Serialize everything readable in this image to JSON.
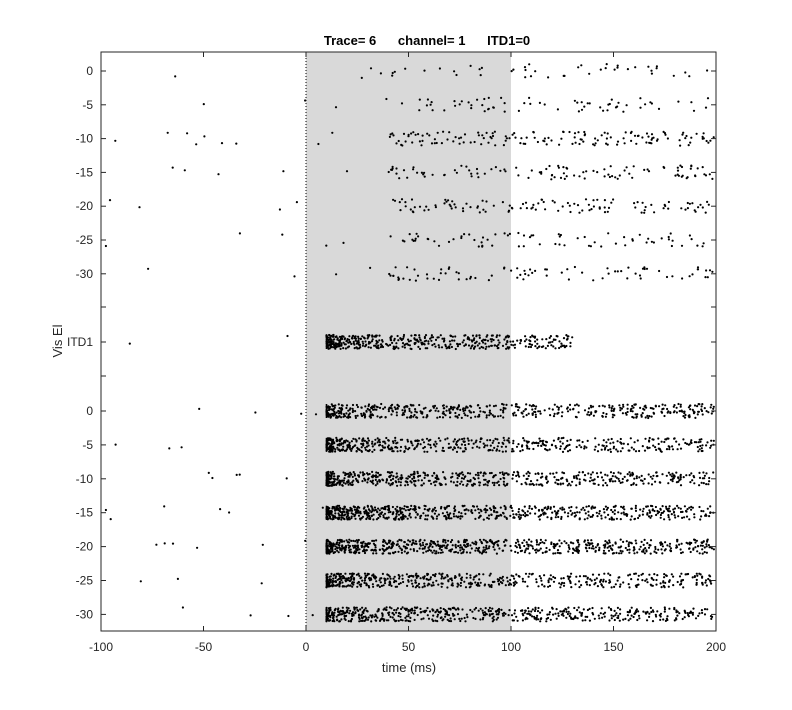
{
  "chart_data": {
    "type": "scatter",
    "title": "Trace= 6      channel= 1      ITD1=0",
    "xlabel": "time (ms)",
    "ylabel": "Vis El",
    "xlim": [
      -100,
      200
    ],
    "xticks": [
      -100,
      -50,
      0,
      50,
      100,
      150,
      200
    ],
    "stimulus_window": [
      0,
      100
    ],
    "stimulus_color": "#d9d9d9",
    "zero_line": 0,
    "grid": false,
    "marker_color": "#000000",
    "groups": [
      {
        "name": "upper",
        "rows": [
          {
            "label": "0",
            "density": 0.06,
            "stim_density": 0.08
          },
          {
            "label": "-5",
            "density": 0.08,
            "stim_density": 0.12
          },
          {
            "label": "-10",
            "density": 0.16,
            "stim_density": 0.28
          },
          {
            "label": "-15",
            "density": 0.07,
            "stim_density": 0.2
          },
          {
            "label": "-20",
            "density": 0.06,
            "stim_density": 0.22
          },
          {
            "label": "-25",
            "density": 0.07,
            "stim_density": 0.14
          },
          {
            "label": "-30",
            "density": 0.05,
            "stim_density": 0.16
          }
        ]
      },
      {
        "name": "middle",
        "rows": [
          {
            "label": "ITD1",
            "density": 0.02,
            "stim_density": 0.9
          }
        ]
      },
      {
        "name": "lower",
        "rows": [
          {
            "label": "0",
            "density": 0.04,
            "stim_density": 1.0
          },
          {
            "label": "-5",
            "density": 0.03,
            "stim_density": 1.0
          },
          {
            "label": "-10",
            "density": 0.05,
            "stim_density": 1.1
          },
          {
            "label": "-15",
            "density": 0.06,
            "stim_density": 1.3
          },
          {
            "label": "-20",
            "density": 0.06,
            "stim_density": 1.35
          },
          {
            "label": "-25",
            "density": 0.03,
            "stim_density": 1.05
          },
          {
            "label": "-30",
            "density": 0.04,
            "stim_density": 1.1
          }
        ]
      }
    ]
  }
}
